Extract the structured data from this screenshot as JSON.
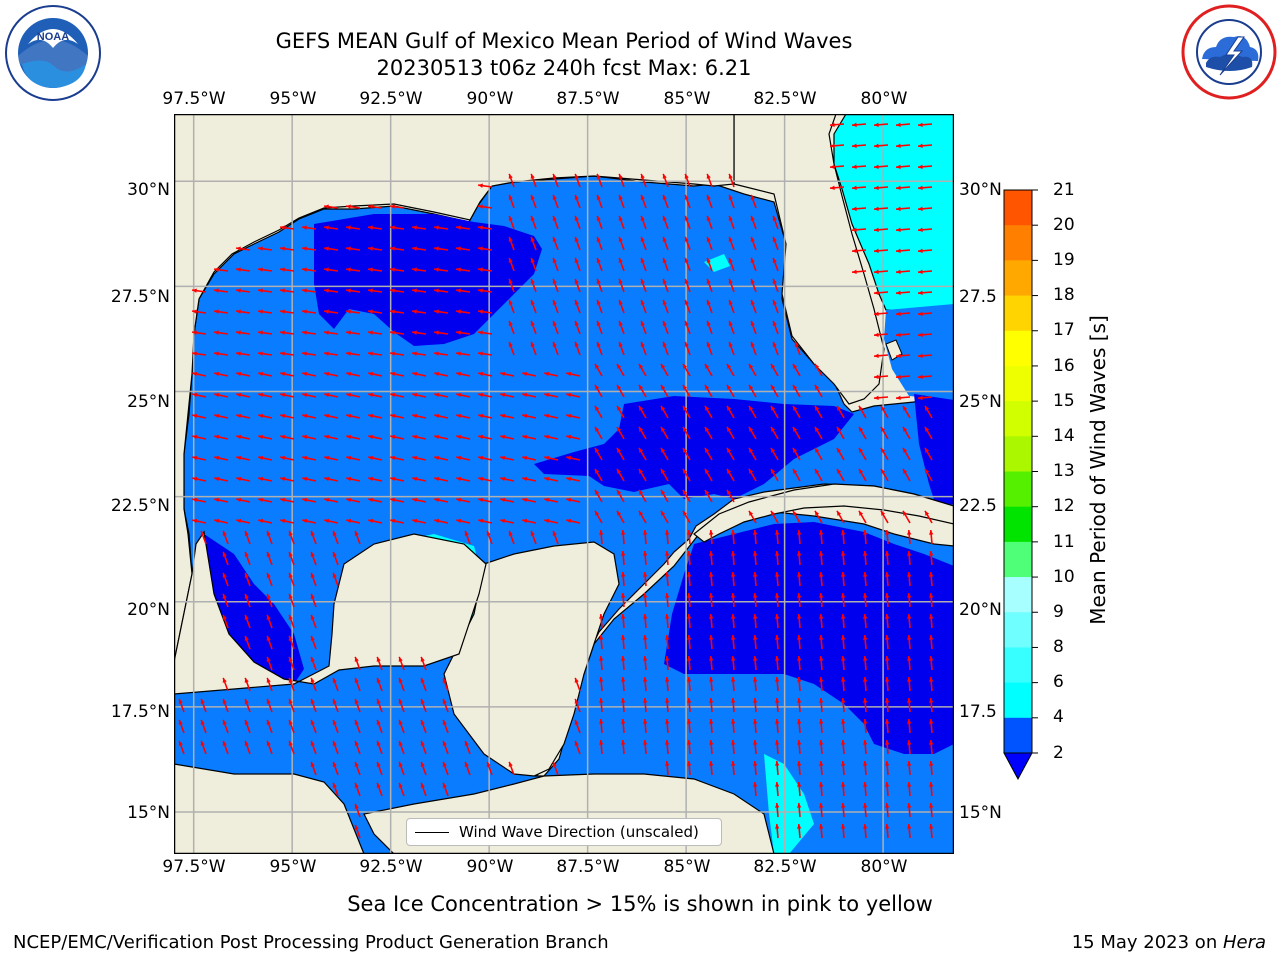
{
  "header": {
    "title_line1": "GEFS MEAN Gulf of Mexico Mean Period of Wind Waves",
    "title_line2": "20230513 t06z 240h fcst   Max: 6.21"
  },
  "logos": {
    "left_text": "NOAA",
    "left_ring_text": "NATIONAL OCEANIC AND ATMOSPHERIC ADMINISTRATION · U.S. DEPARTMENT OF COMMERCE",
    "right_ring_text": "NATIONAL WEATHER SERVICE"
  },
  "axes": {
    "lon_labels": [
      "97.5°W",
      "95°W",
      "92.5°W",
      "90°W",
      "87.5°W",
      "85°W",
      "82.5°W",
      "80°W"
    ],
    "lat_labels_left": [
      "30°N",
      "27.5°N",
      "25°N",
      "22.5°N",
      "20°N",
      "17.5°N",
      "15°N"
    ],
    "lat_labels_right": [
      "30°N",
      "27.5",
      "25°N",
      "22.5",
      "20°N",
      "17.5",
      "15°N"
    ]
  },
  "map_data": {
    "lon_range": [
      -98,
      -78.2
    ],
    "lat_range": [
      14,
      31.6
    ],
    "lon_ticks": [
      -97.5,
      -95,
      -92.5,
      -90,
      -87.5,
      -85,
      -82.5,
      -80
    ],
    "lat_ticks": [
      30,
      27.5,
      25,
      22.5,
      20,
      17.5,
      15
    ],
    "grid": true,
    "field": "Mean Period of Wind Waves",
    "max_value": 6.21
  },
  "legend": {
    "entry": "Wind Wave Direction (unscaled)",
    "placement": "lower-center"
  },
  "colorbar": {
    "label": "Mean Period of Wind Waves [s]",
    "ticks": [
      "2",
      "4",
      "6",
      "8",
      "9",
      "10",
      "11",
      "12",
      "13",
      "14",
      "15",
      "16",
      "17",
      "18",
      "19",
      "20",
      "21"
    ],
    "colors": [
      "#0054ff",
      "#00ffff",
      "#37ffff",
      "#6fffff",
      "#a7ffff",
      "#50ff78",
      "#00e400",
      "#55f000",
      "#aaf700",
      "#d2ff00",
      "#eeff00",
      "#ffff00",
      "#ffd400",
      "#ffa900",
      "#ff7f00",
      "#ff5500",
      "#ff2a00",
      "#ff0000"
    ],
    "extend_color": "#0000ff"
  },
  "colors": {
    "land": "#efeedc",
    "arrow": "#ff0000",
    "period_lt2": "#0000ee",
    "period_2_4": "#0a7cff",
    "period_4_6": "#00ffff",
    "grid": "#b0b0b0"
  },
  "footer": {
    "note": "Sea Ice Concentration > 15% is shown in pink to yellow",
    "credit": "NCEP/EMC/Verification Post Processing Product Generation Branch",
    "date_prefix": "15 May 2023 on ",
    "machine": "Hera"
  }
}
